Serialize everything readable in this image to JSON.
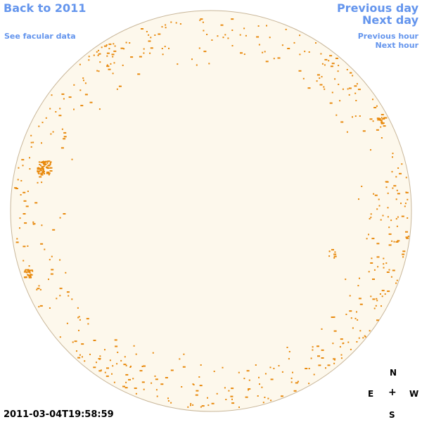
{
  "nav": {
    "back": "Back to 2011",
    "see_facular": "See facular data",
    "previous_day": "Previous day",
    "next_day": "Next day",
    "previous_hour": "Previous hour",
    "next_hour": "Next hour"
  },
  "compass": {
    "north": "N",
    "south": "S",
    "east": "E",
    "west": "W",
    "center": "+"
  },
  "timestamp": "2011-03-04T19:58:59",
  "colors": {
    "link": "#6495ed",
    "disc_fill": "#fdf8ec",
    "disc_stroke": "#c9b79a",
    "facula": "#e8890c"
  }
}
